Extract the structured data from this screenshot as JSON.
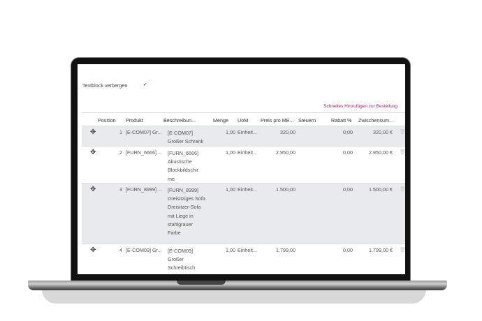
{
  "form": {
    "hide_textblock_label": "Textblock verbergen",
    "hide_textblock_checked": true,
    "quick_add_link": "Schnelles Hinzufügen zur Bestellung",
    "accent_color": "#b5195f"
  },
  "table": {
    "headers": [
      "Position",
      "Produkt",
      "Beschreibun...",
      "Menge",
      "UoM",
      "Preis pro ME...",
      "Steuern",
      "Rabatt %",
      "Zwischensum..."
    ],
    "rows": [
      {
        "position": "1",
        "product": "[E-COM07] Gr...",
        "description": "[E-COM07] Großer Schrank",
        "qty": "1,00",
        "uom": "Einheit...",
        "price": "320,00",
        "taxes": "",
        "discount": "0,00",
        "subtotal": "320,00 €"
      },
      {
        "position": "2",
        "product": "[FURN_6666] ...",
        "description": "[FURN_6666] Akustische Blockbildschir me",
        "qty": "1,00",
        "uom": "Einheit...",
        "price": "2.950,00",
        "taxes": "",
        "discount": "0,00",
        "subtotal": "2.950,00 €"
      },
      {
        "position": "3",
        "product": "[FURN_8999] ...",
        "description": "[FURN_8999] Dreisitziges Sofa Dreisitzer-Sofa mit Liege in stahlgrauer Farbe",
        "qty": "1,00",
        "uom": "Einheit...",
        "price": "1.500,00",
        "taxes": "",
        "discount": "0,00",
        "subtotal": "1.500,00 €"
      },
      {
        "position": "4",
        "product": "[E-COM09] Gr...",
        "description": "[E-COM09] Großer Schreibtisch",
        "qty": "1,00",
        "uom": "Einheit...",
        "price": "1.799,00",
        "taxes": "",
        "discount": "0,00",
        "subtotal": "1.799,00 €"
      }
    ]
  }
}
